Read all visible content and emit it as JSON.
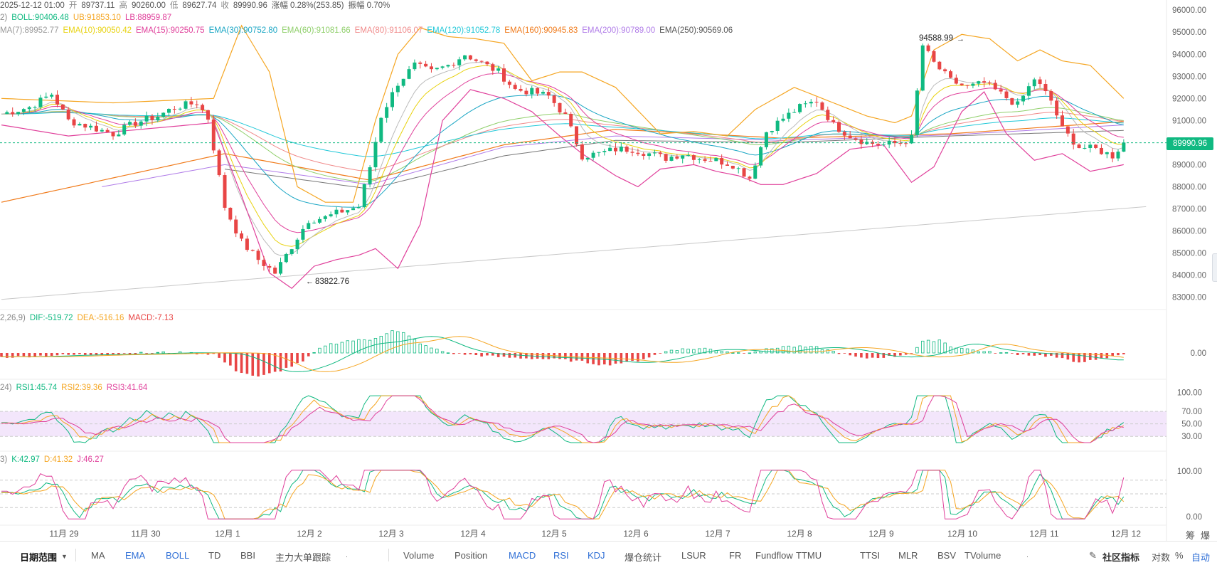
{
  "header": {
    "ohlc_line": [
      {
        "text": "2025-12-12 01:00",
        "color": "#555555"
      },
      {
        "text": "开",
        "color": "#888888"
      },
      {
        "text": "89737.11",
        "color": "#555555"
      },
      {
        "text": "高",
        "color": "#888888"
      },
      {
        "text": "90260.00",
        "color": "#555555"
      },
      {
        "text": "低",
        "color": "#888888"
      },
      {
        "text": "89627.74",
        "color": "#555555"
      },
      {
        "text": "收",
        "color": "#888888"
      },
      {
        "text": "89990.96",
        "color": "#555555"
      },
      {
        "text": "涨幅 0.28%(253.85)",
        "color": "#555555"
      },
      {
        "text": "振幅 0.70%",
        "color": "#555555"
      }
    ],
    "boll_line": [
      {
        "text": "2)",
        "color": "#888888"
      },
      {
        "text": "BOLL:90406.48",
        "color": "#10b981"
      },
      {
        "text": "UB:91853.10",
        "color": "#f5a623"
      },
      {
        "text": "LB:88959.87",
        "color": "#e0409b"
      }
    ],
    "ema_line": [
      {
        "text": "MA(7):89952.77",
        "color": "#999999"
      },
      {
        "text": "EMA(10):90050.42",
        "color": "#e8d20f"
      },
      {
        "text": "EMA(15):90250.75",
        "color": "#e0409b"
      },
      {
        "text": "EMA(30):90752.80",
        "color": "#1aa6c4"
      },
      {
        "text": "EMA(60):91081.66",
        "color": "#8fcf6a"
      },
      {
        "text": "EMA(80):91106.07",
        "color": "#f08a8a"
      },
      {
        "text": "EMA(120):91052.78",
        "color": "#22c8d8"
      },
      {
        "text": "EMA(160):90945.83",
        "color": "#f07a1a"
      },
      {
        "text": "EMA(200):90789.00",
        "color": "#b07ce8"
      },
      {
        "text": "EMA(250):90569.06",
        "color": "#555555"
      }
    ],
    "macd_line": [
      {
        "text": "2,26,9)",
        "color": "#888888"
      },
      {
        "text": "DIF:-519.72",
        "color": "#10b981"
      },
      {
        "text": "DEA:-516.16",
        "color": "#f5a623"
      },
      {
        "text": "MACD:-7.13",
        "color": "#e84545"
      }
    ],
    "rsi_line": [
      {
        "text": "24)",
        "color": "#888888"
      },
      {
        "text": "RSI1:45.74",
        "color": "#10b981"
      },
      {
        "text": "RSI2:39.36",
        "color": "#f5a623"
      },
      {
        "text": "RSI3:41.64",
        "color": "#e0409b"
      }
    ],
    "kdj_line": [
      {
        "text": "3)",
        "color": "#888888"
      },
      {
        "text": "K:42.97",
        "color": "#10b981"
      },
      {
        "text": "D:41.32",
        "color": "#f5a623"
      },
      {
        "text": "J:46.27",
        "color": "#e0409b"
      }
    ]
  },
  "current_price": "89990.96",
  "right_corner": {
    "label1": "筹",
    "label2": "爆"
  },
  "bottom_bar": {
    "date_range": "日期范围",
    "main_indicators": [
      "MA",
      "EMA",
      "BOLL",
      "TD",
      "BBI",
      "主力大单跟踪"
    ],
    "active_main": [
      "EMA",
      "BOLL"
    ],
    "sub_indicators": [
      "Volume",
      "Position",
      "MACD",
      "RSI",
      "KDJ",
      "爆仓统计",
      "LSUR",
      "FR",
      "Fundflow",
      "TTMU",
      "TTSI",
      "MLR",
      "BSV",
      "TVolume"
    ],
    "active_sub": [
      "MACD",
      "RSI",
      "KDJ"
    ],
    "community": "社区指标",
    "log_scale": "对数",
    "percent": "%",
    "auto": "自动"
  },
  "colors": {
    "up": "#10b981",
    "down": "#e84545",
    "boll_band": "#f5a623",
    "lb_band": "#e0409b",
    "rsi_band": "#f3e6fb"
  },
  "chart_data": {
    "type": "candlestick",
    "x_ticks": [
      "11月 29",
      "11月 30",
      "12月 1",
      "12月 2",
      "12月 3",
      "12月 4",
      "12月 5",
      "12月 6",
      "12月 7",
      "12月 8",
      "12月 9",
      "12月 10",
      "12月 11",
      "12月 12"
    ],
    "price_axis": {
      "ticks": [
        "96000.00",
        "95000.00",
        "94000.00",
        "93000.00",
        "92000.00",
        "91000.00",
        "90000.00",
        "89000.00",
        "88000.00",
        "87000.00",
        "86000.00",
        "85000.00",
        "84000.00",
        "83000.00"
      ],
      "range": [
        82600,
        96200
      ]
    },
    "annotations": {
      "high": "94588.99",
      "low": "83822.76"
    },
    "close_path": [
      [
        0,
        91300
      ],
      [
        5,
        91600
      ],
      [
        9,
        92200
      ],
      [
        12,
        91000
      ],
      [
        16,
        90700
      ],
      [
        20,
        90400
      ],
      [
        24,
        90900
      ],
      [
        28,
        91200
      ],
      [
        31,
        91600
      ],
      [
        35,
        91800
      ],
      [
        37,
        91100
      ],
      [
        40,
        87100
      ],
      [
        43,
        85500
      ],
      [
        46,
        84700
      ],
      [
        49,
        84100
      ],
      [
        52,
        85300
      ],
      [
        55,
        86500
      ],
      [
        58,
        86600
      ],
      [
        61,
        86900
      ],
      [
        64,
        87100
      ],
      [
        66,
        88900
      ],
      [
        68,
        91200
      ],
      [
        71,
        92700
      ],
      [
        74,
        93500
      ],
      [
        77,
        93200
      ],
      [
        80,
        93500
      ],
      [
        83,
        94000
      ],
      [
        86,
        93600
      ],
      [
        89,
        93200
      ],
      [
        92,
        92400
      ],
      [
        95,
        92300
      ],
      [
        98,
        92100
      ],
      [
        101,
        91200
      ],
      [
        104,
        89400
      ],
      [
        107,
        89500
      ],
      [
        110,
        89700
      ],
      [
        113,
        89700
      ],
      [
        116,
        89500
      ],
      [
        119,
        89300
      ],
      [
        122,
        89500
      ],
      [
        125,
        89300
      ],
      [
        128,
        89200
      ],
      [
        131,
        89000
      ],
      [
        134,
        88400
      ],
      [
        137,
        90500
      ],
      [
        140,
        91100
      ],
      [
        143,
        91600
      ],
      [
        146,
        91900
      ],
      [
        149,
        90800
      ],
      [
        152,
        90300
      ],
      [
        155,
        90000
      ],
      [
        158,
        89900
      ],
      [
        161,
        90000
      ],
      [
        163,
        90200
      ],
      [
        165,
        94400
      ],
      [
        167,
        93600
      ],
      [
        170,
        92800
      ],
      [
        173,
        92500
      ],
      [
        176,
        92700
      ],
      [
        179,
        92200
      ],
      [
        182,
        91700
      ],
      [
        185,
        92900
      ],
      [
        188,
        91900
      ],
      [
        190,
        90600
      ],
      [
        193,
        89800
      ],
      [
        196,
        89700
      ],
      [
        199,
        89400
      ],
      [
        201,
        89991
      ]
    ],
    "boll_ub_path": [
      [
        0,
        92000
      ],
      [
        20,
        91800
      ],
      [
        38,
        92000
      ],
      [
        43,
        95300
      ],
      [
        48,
        93200
      ],
      [
        53,
        88000
      ],
      [
        58,
        87300
      ],
      [
        63,
        87300
      ],
      [
        67,
        91000
      ],
      [
        71,
        94000
      ],
      [
        75,
        95200
      ],
      [
        80,
        94800
      ],
      [
        85,
        94700
      ],
      [
        90,
        94500
      ],
      [
        95,
        92800
      ],
      [
        100,
        93200
      ],
      [
        104,
        93200
      ],
      [
        110,
        92500
      ],
      [
        118,
        90400
      ],
      [
        124,
        90500
      ],
      [
        130,
        90300
      ],
      [
        135,
        91500
      ],
      [
        142,
        92500
      ],
      [
        148,
        91900
      ],
      [
        155,
        91200
      ],
      [
        160,
        90900
      ],
      [
        163,
        91200
      ],
      [
        167,
        94200
      ],
      [
        172,
        94900
      ],
      [
        177,
        94700
      ],
      [
        182,
        93700
      ],
      [
        186,
        94200
      ],
      [
        190,
        93700
      ],
      [
        195,
        93500
      ],
      [
        201,
        92000
      ]
    ],
    "boll_lb_path": [
      [
        0,
        90800
      ],
      [
        12,
        90300
      ],
      [
        25,
        90600
      ],
      [
        38,
        90900
      ],
      [
        43,
        87600
      ],
      [
        48,
        84100
      ],
      [
        52,
        83400
      ],
      [
        56,
        84400
      ],
      [
        60,
        84700
      ],
      [
        64,
        84900
      ],
      [
        67,
        85200
      ],
      [
        71,
        84300
      ],
      [
        75,
        86300
      ],
      [
        79,
        91000
      ],
      [
        84,
        92400
      ],
      [
        90,
        92000
      ],
      [
        95,
        91400
      ],
      [
        100,
        90300
      ],
      [
        104,
        89500
      ],
      [
        110,
        88500
      ],
      [
        114,
        88000
      ],
      [
        118,
        88800
      ],
      [
        124,
        89000
      ],
      [
        128,
        88700
      ],
      [
        132,
        88500
      ],
      [
        136,
        88100
      ],
      [
        140,
        88100
      ],
      [
        146,
        88600
      ],
      [
        152,
        89700
      ],
      [
        158,
        89900
      ],
      [
        163,
        88200
      ],
      [
        167,
        88900
      ],
      [
        172,
        91400
      ],
      [
        176,
        92300
      ],
      [
        180,
        90400
      ],
      [
        185,
        89200
      ],
      [
        190,
        89500
      ],
      [
        195,
        88700
      ],
      [
        201,
        89000
      ]
    ],
    "ema250_path": [
      [
        40,
        88800
      ],
      [
        66,
        87900
      ],
      [
        90,
        89400
      ],
      [
        110,
        90100
      ],
      [
        140,
        90000
      ],
      [
        170,
        90300
      ],
      [
        201,
        90550
      ]
    ],
    "ema160_path": [
      [
        0,
        87300
      ],
      [
        40,
        89500
      ],
      [
        66,
        88300
      ],
      [
        90,
        89900
      ],
      [
        110,
        90600
      ],
      [
        140,
        90200
      ],
      [
        170,
        90400
      ],
      [
        201,
        90950
      ]
    ],
    "ema200_path": [
      [
        18,
        88000
      ],
      [
        40,
        89000
      ],
      [
        66,
        88100
      ],
      [
        90,
        89800
      ],
      [
        110,
        90300
      ],
      [
        140,
        90100
      ],
      [
        170,
        90350
      ],
      [
        201,
        90800
      ]
    ],
    "trendline": [
      [
        0,
        82900
      ],
      [
        205,
        87100
      ]
    ],
    "macd_hist": [
      [
        0,
        -40
      ],
      [
        10,
        -20
      ],
      [
        20,
        -10
      ],
      [
        30,
        5
      ],
      [
        38,
        -10
      ],
      [
        42,
        -160
      ],
      [
        46,
        -220
      ],
      [
        50,
        -160
      ],
      [
        54,
        -80
      ],
      [
        56,
        0
      ],
      [
        58,
        70
      ],
      [
        62,
        110
      ],
      [
        66,
        120
      ],
      [
        68,
        160
      ],
      [
        70,
        200
      ],
      [
        72,
        180
      ],
      [
        76,
        60
      ],
      [
        80,
        0
      ],
      [
        90,
        -40
      ],
      [
        100,
        -60
      ],
      [
        104,
        -80
      ],
      [
        108,
        -110
      ],
      [
        114,
        -70
      ],
      [
        120,
        30
      ],
      [
        126,
        40
      ],
      [
        132,
        0
      ],
      [
        136,
        20
      ],
      [
        140,
        60
      ],
      [
        146,
        50
      ],
      [
        150,
        0
      ],
      [
        154,
        -50
      ],
      [
        160,
        -30
      ],
      [
        163,
        0
      ],
      [
        165,
        100
      ],
      [
        168,
        120
      ],
      [
        170,
        60
      ],
      [
        176,
        10
      ],
      [
        182,
        -10
      ],
      [
        188,
        -30
      ],
      [
        192,
        -80
      ],
      [
        196,
        -70
      ],
      [
        201,
        -7
      ]
    ],
    "rsi_band": [
      30,
      70
    ],
    "rsi_ticks": [
      "100.00",
      "70.00",
      "50.00",
      "30.00"
    ],
    "kdj_ticks": [
      "100.00",
      "0.00"
    ],
    "macd_ticks": [
      "0.00"
    ]
  }
}
